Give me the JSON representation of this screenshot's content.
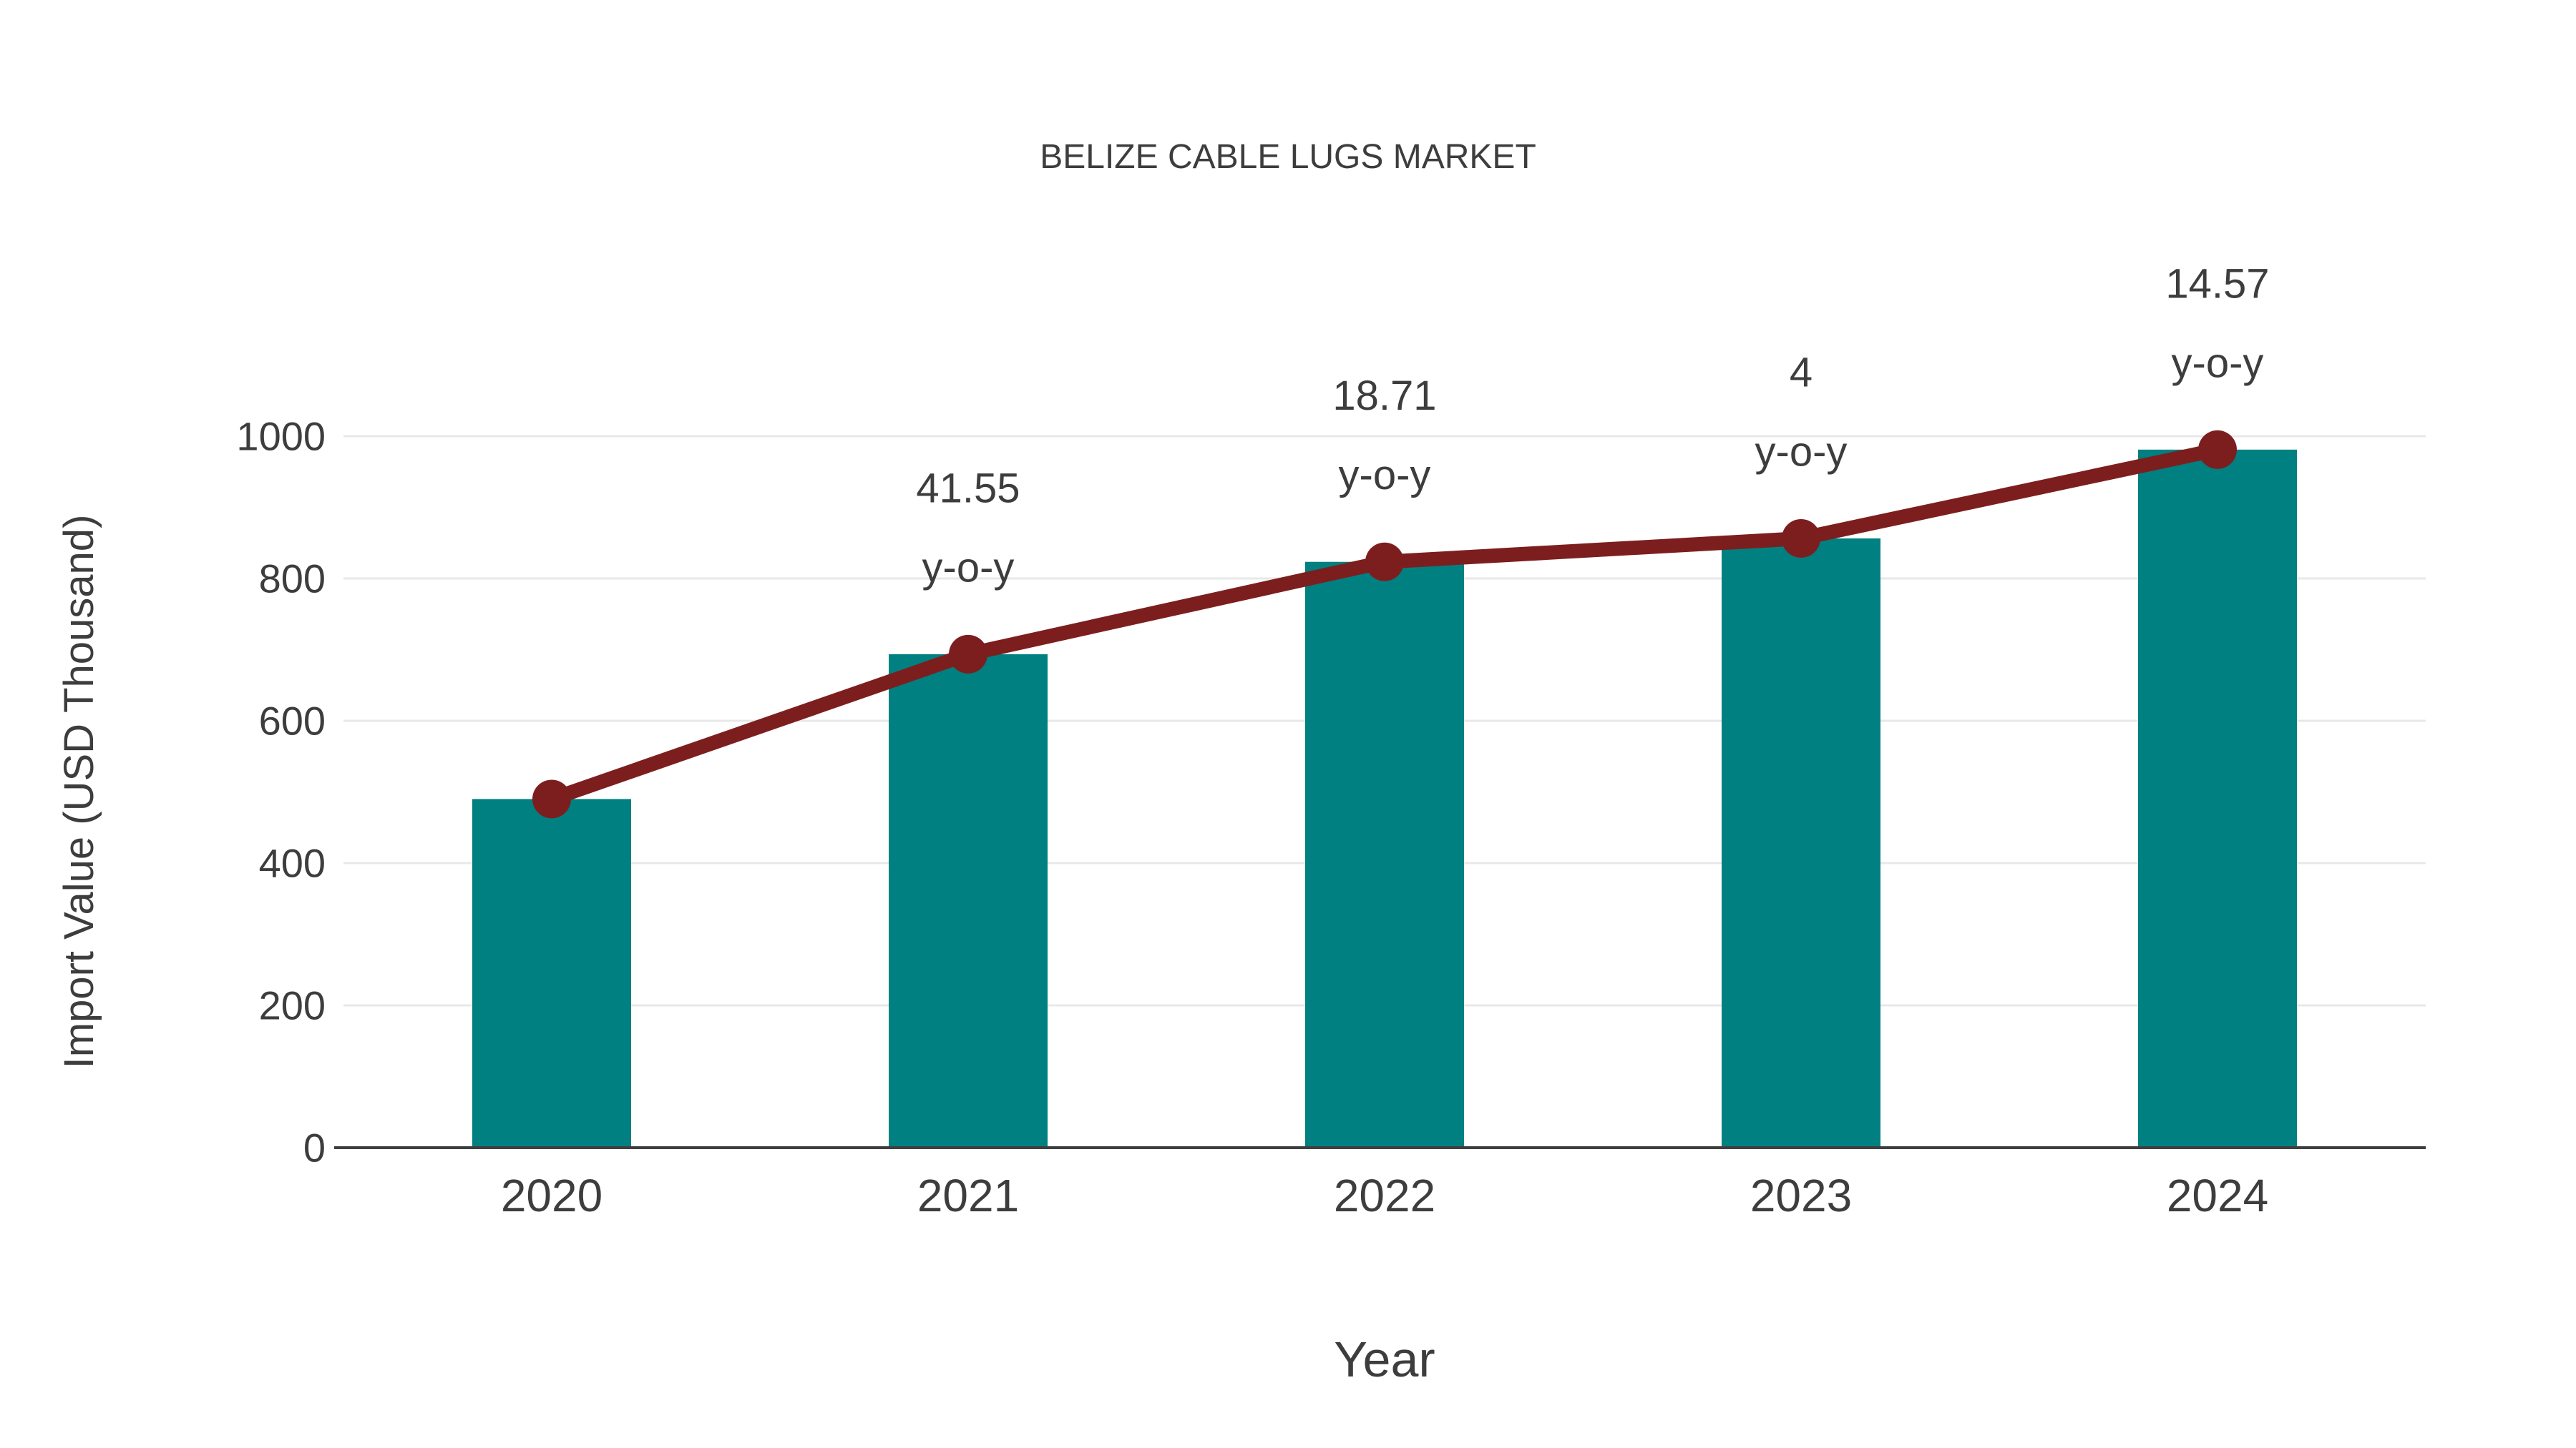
{
  "chart_data": {
    "type": "bar",
    "title": "BELIZE CABLE LUGS MARKET",
    "xlabel": "Year",
    "ylabel": "Import Value (USD Thousand)",
    "categories": [
      "2020",
      "2021",
      "2022",
      "2023",
      "2024"
    ],
    "series": [
      {
        "name": "Import Value bars",
        "type": "bar",
        "color": "#008080",
        "values": [
          490,
          693.6,
          823.4,
          856.3,
          981.1
        ]
      },
      {
        "name": "Import Value trend line",
        "type": "line",
        "color": "#7d1e1e",
        "values": [
          490,
          693.6,
          823.4,
          856.3,
          981.1
        ]
      }
    ],
    "annotations": [
      {
        "category": "2021",
        "line1": "41.55",
        "line2": "y-o-y"
      },
      {
        "category": "2022",
        "line1": "18.71",
        "line2": "y-o-y"
      },
      {
        "category": "2023",
        "line1": "4",
        "line2": "y-o-y"
      },
      {
        "category": "2024",
        "line1": "14.57",
        "line2": "y-o-y"
      }
    ],
    "yticks": [
      0,
      200,
      400,
      600,
      800,
      1000
    ],
    "ylim": [
      0,
      1100
    ],
    "grid": true,
    "legend": "none",
    "colors": {
      "bar": "#008080",
      "line": "#7d1e1e",
      "text": "#3d3d3d",
      "gridline": "#e8e8e8",
      "axis": "#3f3f3f",
      "background": "#ffffff"
    }
  }
}
